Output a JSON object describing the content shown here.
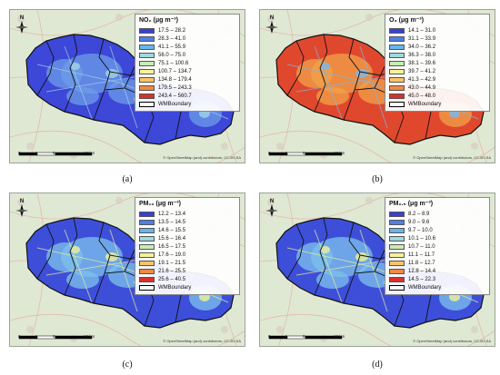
{
  "panels": [
    {
      "id": "a",
      "caption": "(a)",
      "legend_title": "NO₂ (μg m⁻³)",
      "classes": [
        {
          "label": "17.5 – 28.2",
          "color": "#3a3fd6"
        },
        {
          "label": "28.3 – 41.0",
          "color": "#4d7fe6"
        },
        {
          "label": "41.1 – 55.9",
          "color": "#66b5ef"
        },
        {
          "label": "56.0 – 75.0",
          "color": "#9ed9df"
        },
        {
          "label": "75.1 – 100.6",
          "color": "#c9ecb4"
        },
        {
          "label": "100.7 – 134.7",
          "color": "#f5f29a"
        },
        {
          "label": "134.8 – 179.4",
          "color": "#f7c565"
        },
        {
          "label": "179.5 – 243.3",
          "color": "#f08a3f"
        },
        {
          "label": "243.4 – 560.7",
          "color": "#d9302a"
        }
      ],
      "boundary_label": "WMBoundary",
      "fill": {
        "base": "#3d47d8",
        "urban": "#6d9ce8",
        "hot": "#9fd0e6"
      }
    },
    {
      "id": "b",
      "caption": "(b)",
      "legend_title": "O₃ (μg m⁻³)",
      "classes": [
        {
          "label": "14.1 – 31.0",
          "color": "#3a3fd6"
        },
        {
          "label": "31.1 – 33.9",
          "color": "#4d7fe6"
        },
        {
          "label": "34.0 – 36.2",
          "color": "#66b5ef"
        },
        {
          "label": "36.3 – 38.0",
          "color": "#9ed9df"
        },
        {
          "label": "38.1 – 39.6",
          "color": "#c9ecb4"
        },
        {
          "label": "39.7 – 41.2",
          "color": "#f5f29a"
        },
        {
          "label": "41.3 – 42.9",
          "color": "#f7c565"
        },
        {
          "label": "43.0 – 44.9",
          "color": "#f08a3f"
        },
        {
          "label": "45.0 – 48.0",
          "color": "#d9302a"
        }
      ],
      "boundary_label": "WMBoundary",
      "fill": {
        "base": "#e0482e",
        "urban": "#f2a14a",
        "hot": "#7fb6e6"
      }
    },
    {
      "id": "c",
      "caption": "(c)",
      "legend_title": "PM₁₀ (μg m⁻³)",
      "classes": [
        {
          "label": "12.2 – 13.4",
          "color": "#3a3fd6"
        },
        {
          "label": "13.5 – 14.5",
          "color": "#4d7fe6"
        },
        {
          "label": "14.6 – 15.5",
          "color": "#66b5ef"
        },
        {
          "label": "15.6 – 16.4",
          "color": "#9ed9df"
        },
        {
          "label": "16.5 – 17.5",
          "color": "#c9ecb4"
        },
        {
          "label": "17.6 – 19.0",
          "color": "#f5f29a"
        },
        {
          "label": "19.1 – 21.5",
          "color": "#f7c565"
        },
        {
          "label": "21.6 – 25.5",
          "color": "#f08a3f"
        },
        {
          "label": "25.6 – 40.5",
          "color": "#d9302a"
        }
      ],
      "boundary_label": "WMBoundary",
      "fill": {
        "base": "#3d4fd9",
        "urban": "#7ec2ec",
        "hot": "#e8ec9c"
      }
    },
    {
      "id": "d",
      "caption": "(d)",
      "legend_title": "PM₂.₅ (μg m⁻³)",
      "classes": [
        {
          "label": "8.2 – 8.9",
          "color": "#3a3fd6"
        },
        {
          "label": "9.0 – 9.6",
          "color": "#4d7fe6"
        },
        {
          "label": "9.7 – 10.0",
          "color": "#66b5ef"
        },
        {
          "label": "10.1 – 10.6",
          "color": "#9ed9df"
        },
        {
          "label": "10.7 – 11.0",
          "color": "#c9ecb4"
        },
        {
          "label": "11.1 – 11.7",
          "color": "#f5f29a"
        },
        {
          "label": "11.8 – 12.7",
          "color": "#f7c565"
        },
        {
          "label": "12.8 – 14.4",
          "color": "#f08a3f"
        },
        {
          "label": "14.5 – 22.3",
          "color": "#d9302a"
        }
      ],
      "boundary_label": "WMBoundary",
      "fill": {
        "base": "#3d4fd9",
        "urban": "#7ec2ec",
        "hot": "#e8ec9c"
      }
    }
  ],
  "map": {
    "attribution": "© OpenStreetMap (and) contributors, CC-BY-SA",
    "scale_ticks": [
      "0",
      "4",
      "8",
      "16 km"
    ],
    "north_label": "N"
  }
}
